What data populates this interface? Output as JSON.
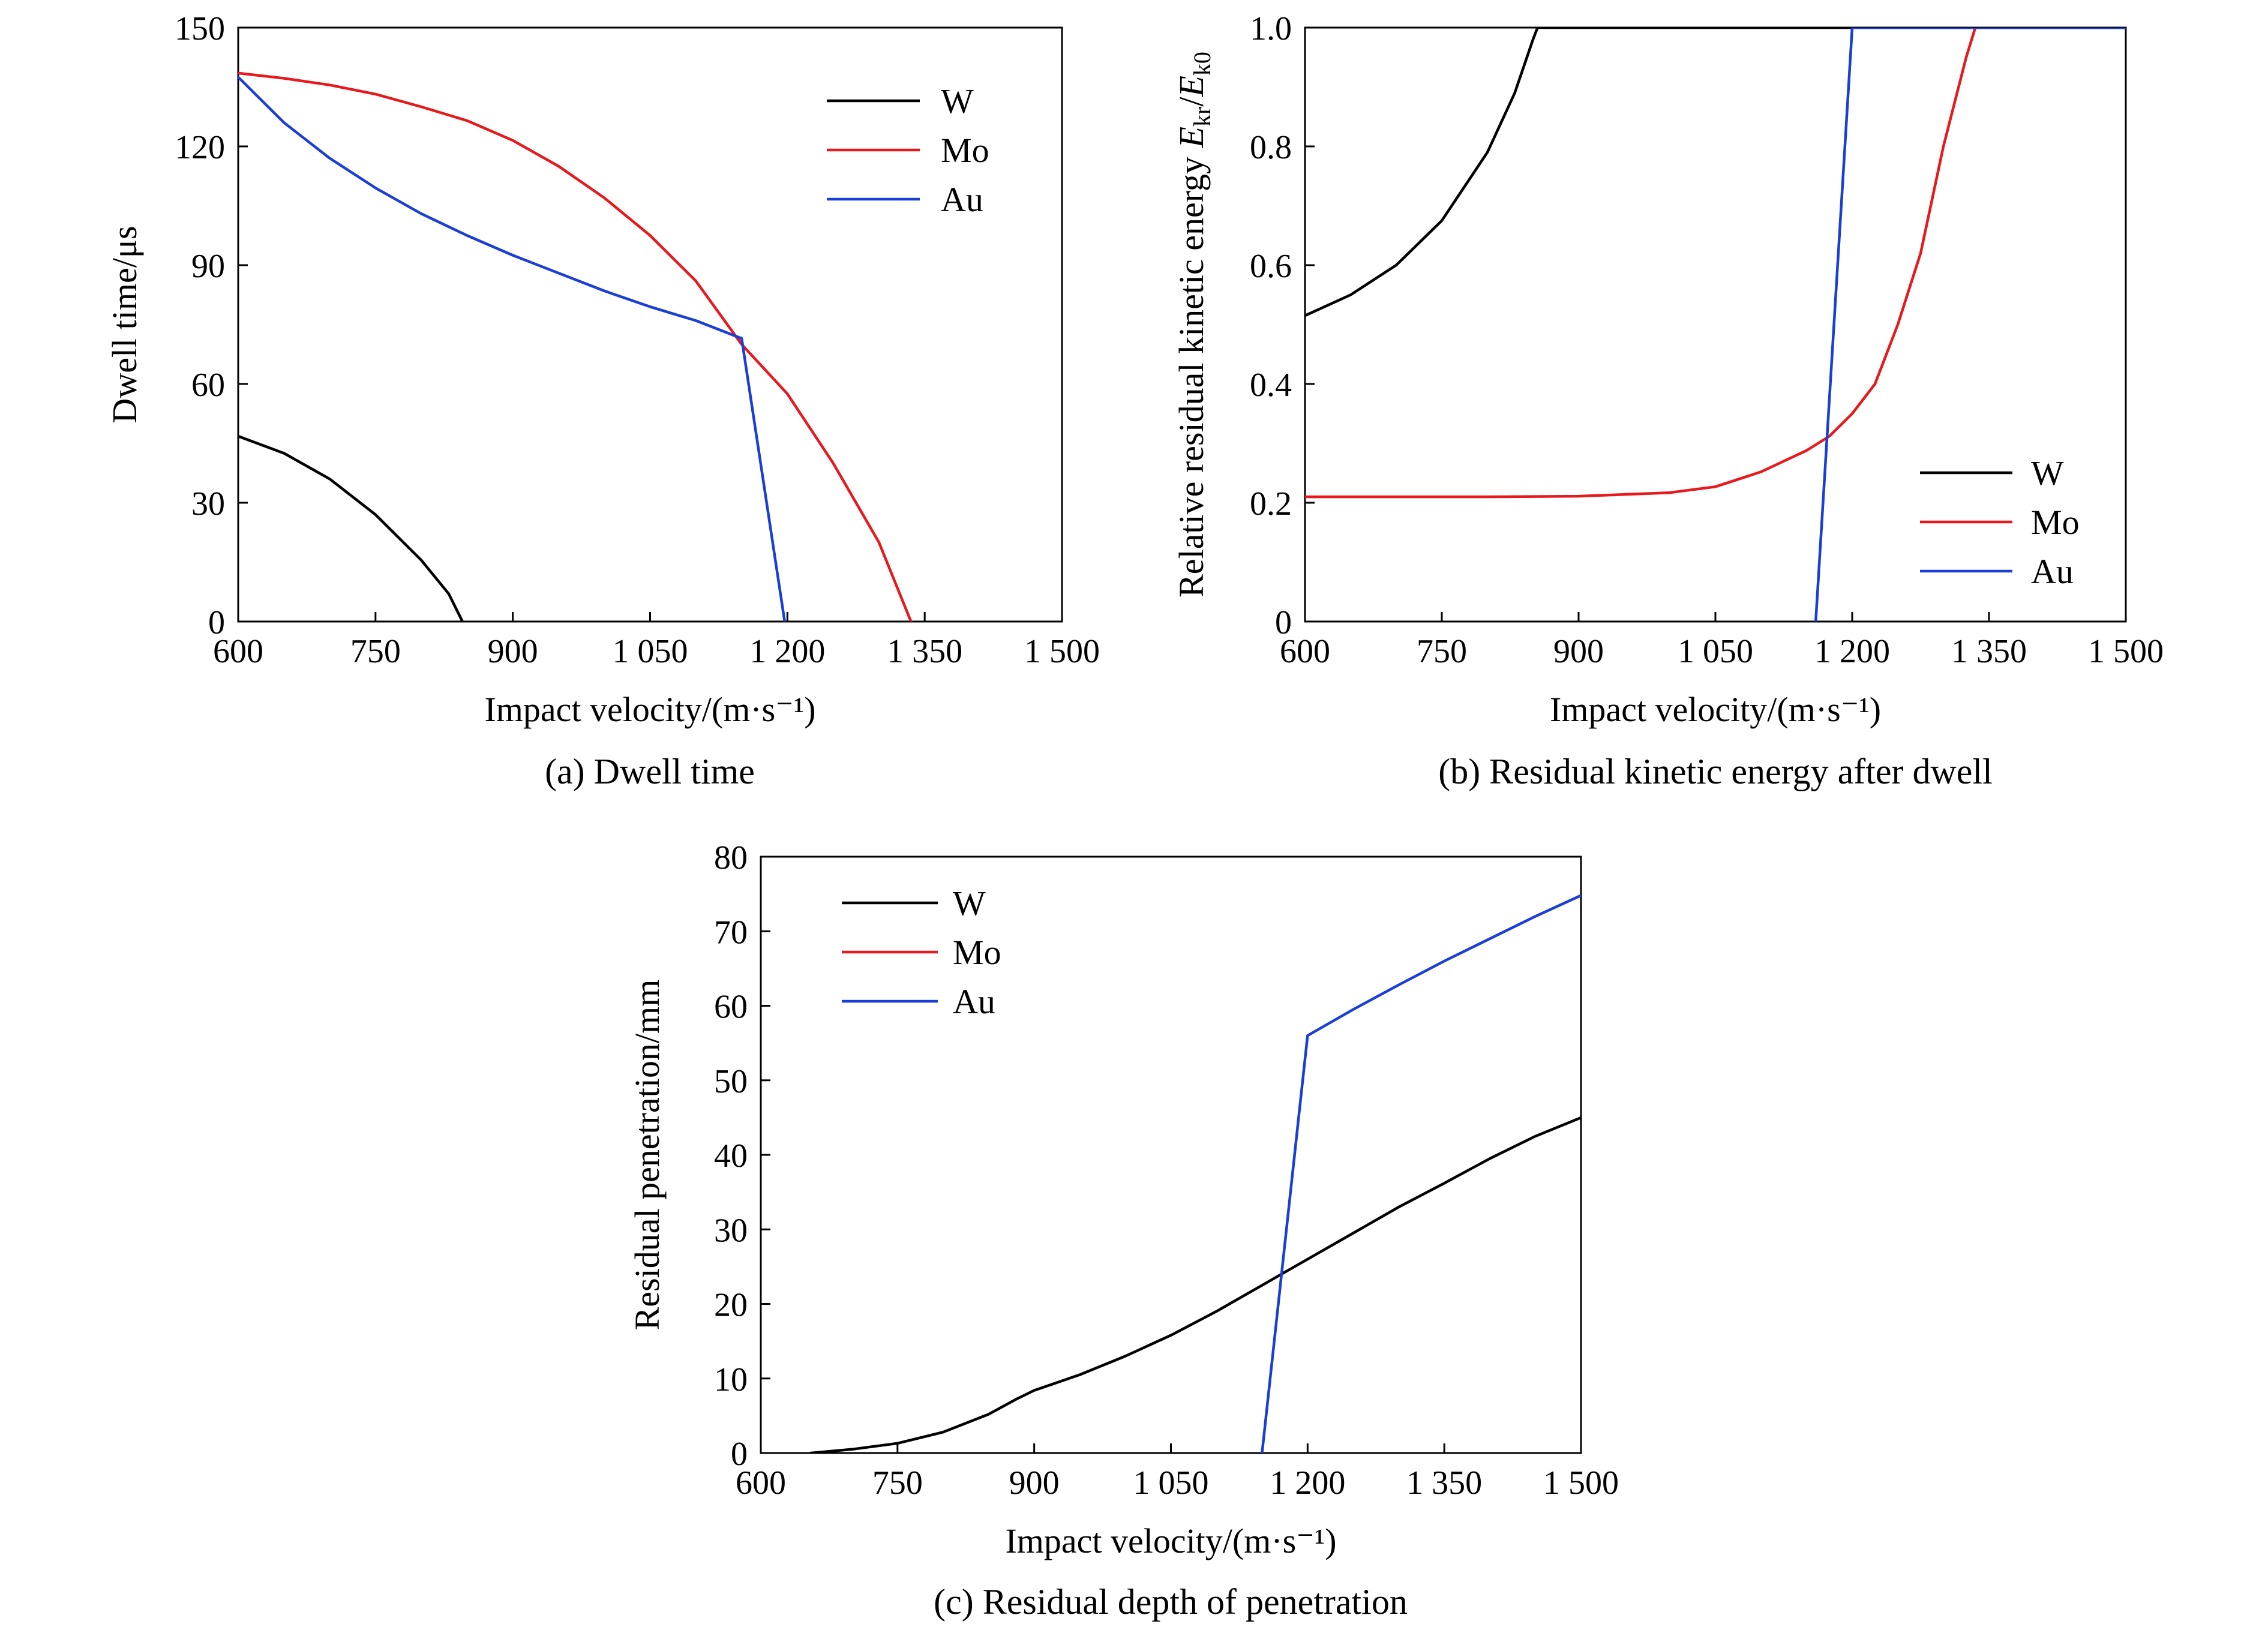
{
  "colors": {
    "W": "#000000",
    "Mo": "#e8191c",
    "Au": "#1a3fd6"
  },
  "chart_data": [
    {
      "id": "a",
      "type": "line",
      "caption": "(a) Dwell time",
      "xlabel": "Impact velocity/(m·s⁻¹)",
      "ylabel": "Dwell time/μs",
      "xlim": [
        600,
        1500
      ],
      "ylim": [
        0,
        150
      ],
      "xticks": [
        600,
        750,
        900,
        1050,
        1200,
        1350,
        1500
      ],
      "xtick_labels": [
        "600",
        "750",
        "900",
        "1 050",
        "1 200",
        "1 350",
        "1 500"
      ],
      "yticks": [
        0,
        30,
        60,
        90,
        120,
        150
      ],
      "ytick_labels": [
        "0",
        "30",
        "60",
        "90",
        "120",
        "150"
      ],
      "legend": "top-right",
      "grid": false,
      "series": [
        {
          "name": "W",
          "points": [
            [
              600,
              46.8
            ],
            [
              650,
              42.5
            ],
            [
              700,
              36
            ],
            [
              750,
              27
            ],
            [
              800,
              15.5
            ],
            [
              830,
              7
            ],
            [
              845,
              0
            ]
          ]
        },
        {
          "name": "Mo",
          "points": [
            [
              600,
              138.5
            ],
            [
              650,
              137.2
            ],
            [
              700,
              135.5
            ],
            [
              750,
              133.2
            ],
            [
              800,
              130
            ],
            [
              850,
              126.5
            ],
            [
              900,
              121.5
            ],
            [
              950,
              115
            ],
            [
              1000,
              107
            ],
            [
              1050,
              97.5
            ],
            [
              1100,
              86
            ],
            [
              1150,
              70
            ],
            [
              1200,
              57.5
            ],
            [
              1250,
              40
            ],
            [
              1300,
              20
            ],
            [
              1335,
              0
            ]
          ]
        },
        {
          "name": "Au",
          "points": [
            [
              600,
              137.5
            ],
            [
              650,
              126
            ],
            [
              700,
              117
            ],
            [
              750,
              109.5
            ],
            [
              800,
              103
            ],
            [
              850,
              97.5
            ],
            [
              900,
              92.5
            ],
            [
              950,
              88
            ],
            [
              1000,
              83.5
            ],
            [
              1050,
              79.5
            ],
            [
              1100,
              76
            ],
            [
              1150,
              71.5
            ],
            [
              1197,
              0
            ]
          ]
        }
      ]
    },
    {
      "id": "b",
      "type": "line",
      "caption": "(b) Residual kinetic energy after dwell",
      "xlabel": "Impact velocity/(m·s⁻¹)",
      "ylabel": "Relative residual kinetic energy E_kr/E_k0",
      "ylabel_parts": [
        "Relative residual kinetic energy ",
        "E",
        "kr",
        "/",
        "E",
        "k0"
      ],
      "xlim": [
        600,
        1500
      ],
      "ylim": [
        0,
        1.0
      ],
      "xticks": [
        600,
        750,
        900,
        1050,
        1200,
        1350,
        1500
      ],
      "xtick_labels": [
        "600",
        "750",
        "900",
        "1 050",
        "1 200",
        "1 350",
        "1 500"
      ],
      "yticks": [
        0,
        0.2,
        0.4,
        0.6,
        0.8,
        1.0
      ],
      "ytick_labels": [
        "0",
        "0.2",
        "0.4",
        "0.6",
        "0.8",
        "1.0"
      ],
      "legend": "bottom-right",
      "grid": false,
      "series": [
        {
          "name": "W",
          "points": [
            [
              600,
              0.515
            ],
            [
              650,
              0.55
            ],
            [
              700,
              0.6
            ],
            [
              750,
              0.675
            ],
            [
              800,
              0.79
            ],
            [
              830,
              0.89
            ],
            [
              850,
              0.98
            ],
            [
              855,
              1.0
            ],
            [
              1500,
              1.0
            ]
          ]
        },
        {
          "name": "Mo",
          "points": [
            [
              600,
              0.21
            ],
            [
              700,
              0.21
            ],
            [
              800,
              0.21
            ],
            [
              900,
              0.211
            ],
            [
              1000,
              0.217
            ],
            [
              1050,
              0.227
            ],
            [
              1100,
              0.252
            ],
            [
              1150,
              0.288
            ],
            [
              1175,
              0.312
            ],
            [
              1200,
              0.35
            ],
            [
              1225,
              0.4
            ],
            [
              1250,
              0.5
            ],
            [
              1275,
              0.62
            ],
            [
              1300,
              0.8
            ],
            [
              1325,
              0.95
            ],
            [
              1335,
              1.0
            ],
            [
              1500,
              1.0
            ]
          ]
        },
        {
          "name": "Au",
          "points": [
            [
              1160,
              0
            ],
            [
              1200,
              1.0
            ],
            [
              1500,
              1.0
            ]
          ]
        }
      ]
    },
    {
      "id": "c",
      "type": "line",
      "caption": "(c) Residual depth of penetration",
      "xlabel": "Impact velocity/(m·s⁻¹)",
      "ylabel": "Residual penetration/mm",
      "xlim": [
        600,
        1500
      ],
      "ylim": [
        0,
        80
      ],
      "xticks": [
        600,
        750,
        900,
        1050,
        1200,
        1350,
        1500
      ],
      "xtick_labels": [
        "600",
        "750",
        "900",
        "1 050",
        "1 200",
        "1 350",
        "1 500"
      ],
      "yticks": [
        0,
        10,
        20,
        30,
        40,
        50,
        60,
        70,
        80
      ],
      "ytick_labels": [
        "0",
        "10",
        "20",
        "30",
        "40",
        "50",
        "60",
        "70",
        "80"
      ],
      "legend": "top-left",
      "grid": false,
      "series": [
        {
          "name": "W",
          "points": [
            [
              655,
              0
            ],
            [
              700,
              0.5
            ],
            [
              750,
              1.3
            ],
            [
              800,
              2.8
            ],
            [
              850,
              5.2
            ],
            [
              880,
              7.2
            ],
            [
              900,
              8.4
            ],
            [
              950,
              10.5
            ],
            [
              1000,
              13
            ],
            [
              1050,
              15.8
            ],
            [
              1100,
              19
            ],
            [
              1150,
              22.5
            ],
            [
              1200,
              26
            ],
            [
              1250,
              29.5
            ],
            [
              1300,
              33
            ],
            [
              1350,
              36.2
            ],
            [
              1400,
              39.5
            ],
            [
              1450,
              42.5
            ],
            [
              1500,
              45
            ]
          ]
        },
        {
          "name": "Mo",
          "points": []
        },
        {
          "name": "Au",
          "points": [
            [
              1150,
              0
            ],
            [
              1200,
              56
            ],
            [
              1250,
              59.5
            ],
            [
              1300,
              62.8
            ],
            [
              1350,
              66
            ],
            [
              1400,
              69
            ],
            [
              1450,
              72
            ],
            [
              1500,
              74.8
            ]
          ]
        }
      ]
    }
  ]
}
